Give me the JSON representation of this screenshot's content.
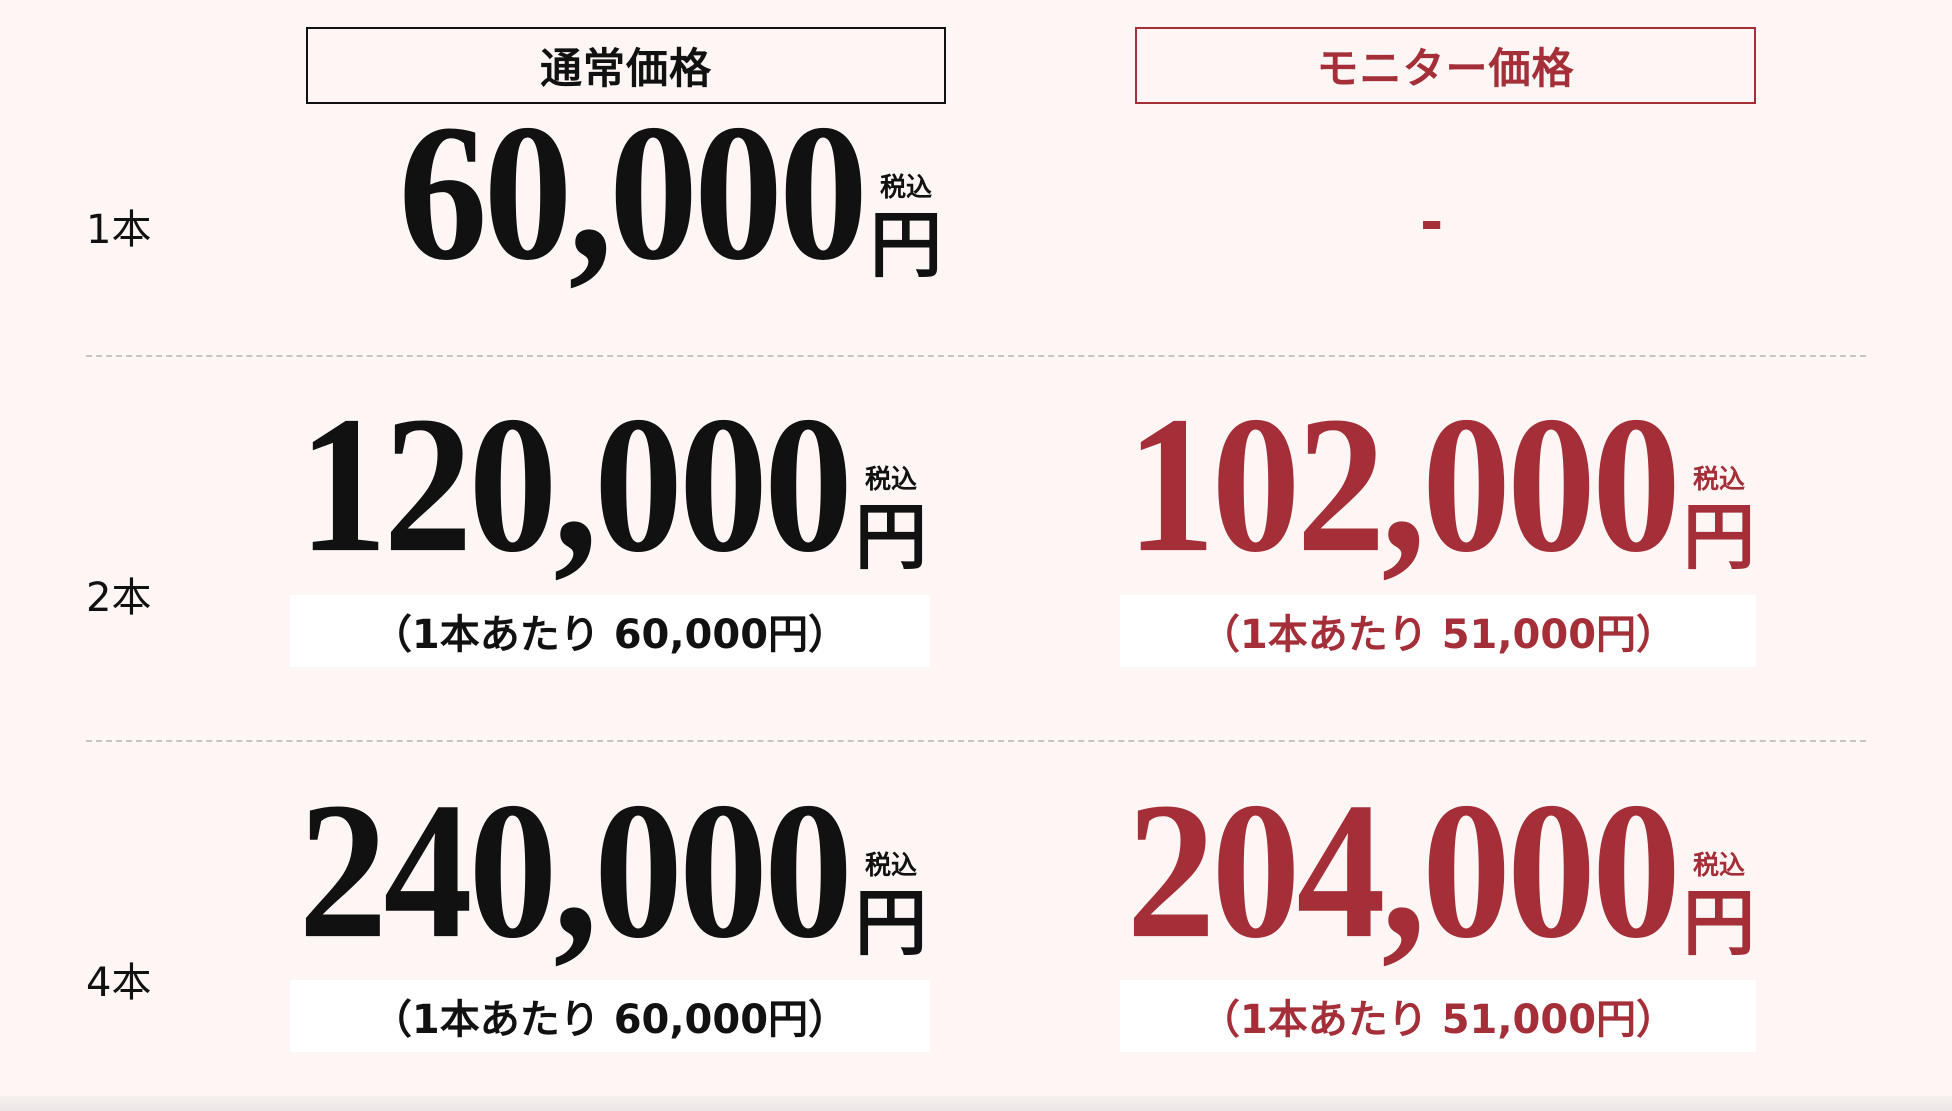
{
  "headers": {
    "normal": "通常価格",
    "monitor": "モニター価格"
  },
  "tax_label": "税込",
  "yen": "円",
  "colors": {
    "background": "#fdf6f5",
    "monitor_accent": "#a52f38",
    "text": "#111111"
  },
  "rows": [
    {
      "label": "1本",
      "normal_price": "60,000",
      "monitor_price": "-"
    },
    {
      "label": "2本",
      "normal_price": "120,000",
      "normal_per_unit": "（1本あたり 60,000円）",
      "monitor_price": "102,000",
      "monitor_per_unit": "（1本あたり 51,000円）"
    },
    {
      "label": "4本",
      "normal_price": "240,000",
      "normal_per_unit": "（1本あたり 60,000円）",
      "monitor_price": "204,000",
      "monitor_per_unit": "（1本あたり 51,000円）"
    }
  ]
}
